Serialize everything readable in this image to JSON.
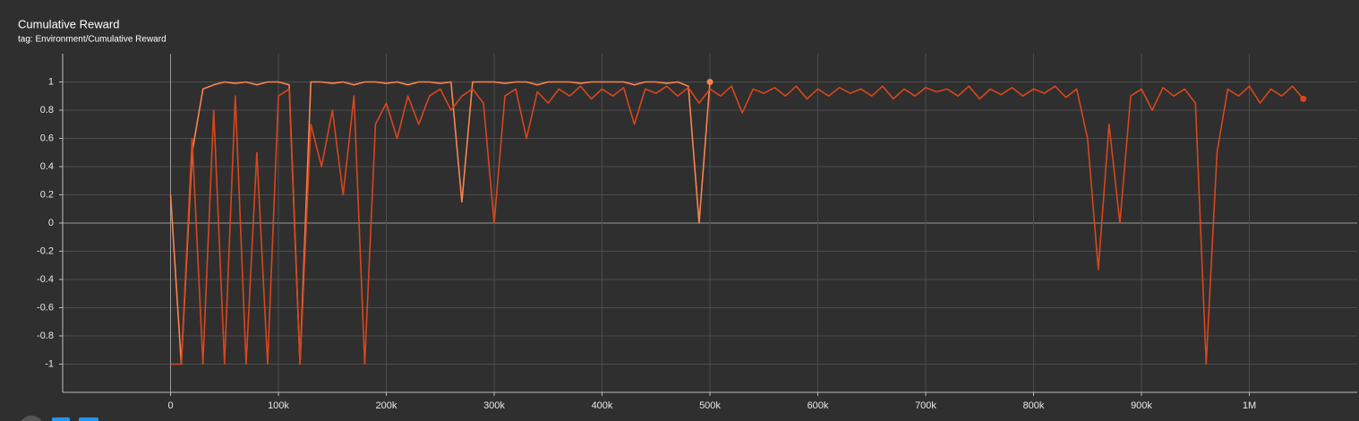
{
  "chart_data": {
    "type": "line",
    "title": "Cumulative Reward",
    "subtitle": "tag: Environment/Cumulative Reward",
    "x": [
      0,
      10000,
      20000,
      30000,
      40000,
      50000,
      60000,
      70000,
      80000,
      90000,
      100000,
      110000,
      120000,
      130000,
      140000,
      150000,
      160000,
      170000,
      180000,
      190000,
      200000,
      210000,
      220000,
      230000,
      240000,
      250000,
      260000,
      270000,
      280000,
      290000,
      300000,
      310000,
      320000,
      330000,
      340000,
      350000,
      360000,
      370000,
      380000,
      390000,
      400000,
      410000,
      420000,
      430000,
      440000,
      450000,
      460000,
      470000,
      480000,
      490000,
      500000,
      510000,
      520000,
      530000,
      540000,
      550000,
      560000,
      570000,
      580000,
      590000,
      600000,
      610000,
      620000,
      630000,
      640000,
      650000,
      660000,
      670000,
      680000,
      690000,
      700000,
      710000,
      720000,
      730000,
      740000,
      750000,
      760000,
      770000,
      780000,
      790000,
      800000,
      810000,
      820000,
      830000,
      840000,
      850000,
      860000,
      870000,
      880000,
      890000,
      900000,
      910000,
      920000,
      930000,
      940000,
      950000,
      960000,
      970000,
      980000,
      990000,
      1000000,
      1010000,
      1020000,
      1030000,
      1040000,
      1050000
    ],
    "series": [
      {
        "color": "#fb8350",
        "values": [
          0.2,
          -1,
          0.5,
          0.95,
          0.98,
          1,
          0.99,
          1,
          0.98,
          1,
          1,
          0.98,
          -1,
          1,
          1,
          0.99,
          1,
          0.98,
          1,
          1,
          0.99,
          1,
          0.98,
          1,
          1,
          0.99,
          1,
          0.15,
          1,
          1,
          1,
          0.99,
          1,
          1,
          0.98,
          1,
          1,
          1,
          0.99,
          1,
          1,
          1,
          1,
          0.98,
          1,
          1,
          0.99,
          1,
          0.97,
          0,
          1,
          null,
          null,
          null,
          null,
          null,
          null,
          null,
          null,
          null,
          null,
          null,
          null,
          null,
          null,
          null,
          null,
          null,
          null,
          null,
          null,
          null,
          null,
          null,
          null,
          null,
          null,
          null,
          null,
          null,
          null,
          null,
          null,
          null,
          null,
          null,
          null,
          null,
          null,
          null,
          null,
          null,
          null,
          null,
          null,
          null,
          null,
          null,
          null,
          null,
          null,
          null,
          null,
          null,
          null,
          null
        ]
      },
      {
        "color": "#d9461d",
        "values": [
          -1,
          -1,
          0.6,
          -1,
          0.8,
          -1,
          0.9,
          -1,
          0.5,
          -1,
          0.9,
          0.95,
          -1,
          0.7,
          0.4,
          0.8,
          0.2,
          0.9,
          -1,
          0.7,
          0.85,
          0.6,
          0.9,
          0.7,
          0.9,
          0.95,
          0.8,
          0.9,
          0.95,
          0.85,
          0,
          0.9,
          0.95,
          0.6,
          0.93,
          0.85,
          0.95,
          0.9,
          0.97,
          0.88,
          0.95,
          0.9,
          0.96,
          0.7,
          0.95,
          0.92,
          0.97,
          0.9,
          0.96,
          0.85,
          0.95,
          0.9,
          0.97,
          0.78,
          0.95,
          0.92,
          0.96,
          0.9,
          0.97,
          0.88,
          0.95,
          0.9,
          0.96,
          0.92,
          0.95,
          0.9,
          0.97,
          0.88,
          0.95,
          0.9,
          0.96,
          0.93,
          0.95,
          0.9,
          0.97,
          0.88,
          0.95,
          0.91,
          0.96,
          0.9,
          0.95,
          0.92,
          0.97,
          0.89,
          0.95,
          0.6,
          -0.33,
          0.7,
          0,
          0.9,
          0.95,
          0.8,
          0.96,
          0.9,
          0.95,
          0.85,
          -1,
          0.5,
          0.95,
          0.9,
          0.97,
          0.85,
          0.95,
          0.9,
          0.97,
          0.88
        ]
      }
    ],
    "xlim": [
      -100000,
      1100000
    ],
    "xticks": [
      {
        "value": 0,
        "label": "0"
      },
      {
        "value": 100000,
        "label": "100k"
      },
      {
        "value": 200000,
        "label": "200k"
      },
      {
        "value": 300000,
        "label": "300k"
      },
      {
        "value": 400000,
        "label": "400k"
      },
      {
        "value": 500000,
        "label": "500k"
      },
      {
        "value": 600000,
        "label": "600k"
      },
      {
        "value": 700000,
        "label": "700k"
      },
      {
        "value": 800000,
        "label": "800k"
      },
      {
        "value": 900000,
        "label": "900k"
      },
      {
        "value": 1000000,
        "label": "1M"
      }
    ],
    "ylim": [
      -1.2,
      1.2
    ],
    "yticks": [
      -1,
      -0.8,
      -0.6,
      -0.4,
      -0.2,
      0,
      0.2,
      0.4,
      0.6,
      0.8,
      1
    ],
    "grid": true
  }
}
